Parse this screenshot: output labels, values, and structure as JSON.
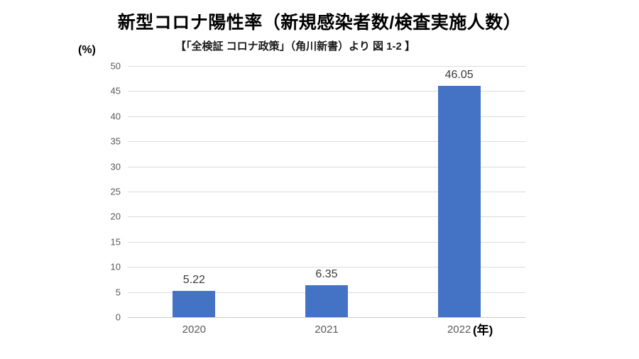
{
  "chart_data": {
    "type": "bar",
    "title": "新型コロナ陽性率（新規感染者数/検査実施人数）",
    "subtitle": "【「全検証 コロナ政策」（角川新書）より 図 1-2 】",
    "categories": [
      "2020",
      "2021",
      "2022"
    ],
    "values": [
      5.22,
      6.35,
      46.05
    ],
    "value_labels": [
      "5.22",
      "6.35",
      "46.05"
    ],
    "xlabel": "",
    "ylabel": "",
    "y_axis": {
      "unit_label": "(%)",
      "min": 0,
      "max": 50,
      "tick_step": 5,
      "ticks": [
        0,
        5,
        10,
        15,
        20,
        25,
        30,
        35,
        40,
        45,
        50
      ]
    },
    "x_axis": {
      "unit_label": "(年)"
    },
    "grid": true,
    "legend_position": "none",
    "colors": {
      "bar": "#4472C4",
      "gridline": "#dcdcdc",
      "axis_text": "#595959",
      "value_label_text": "#3a3a3a",
      "title_text": "#000000"
    }
  }
}
